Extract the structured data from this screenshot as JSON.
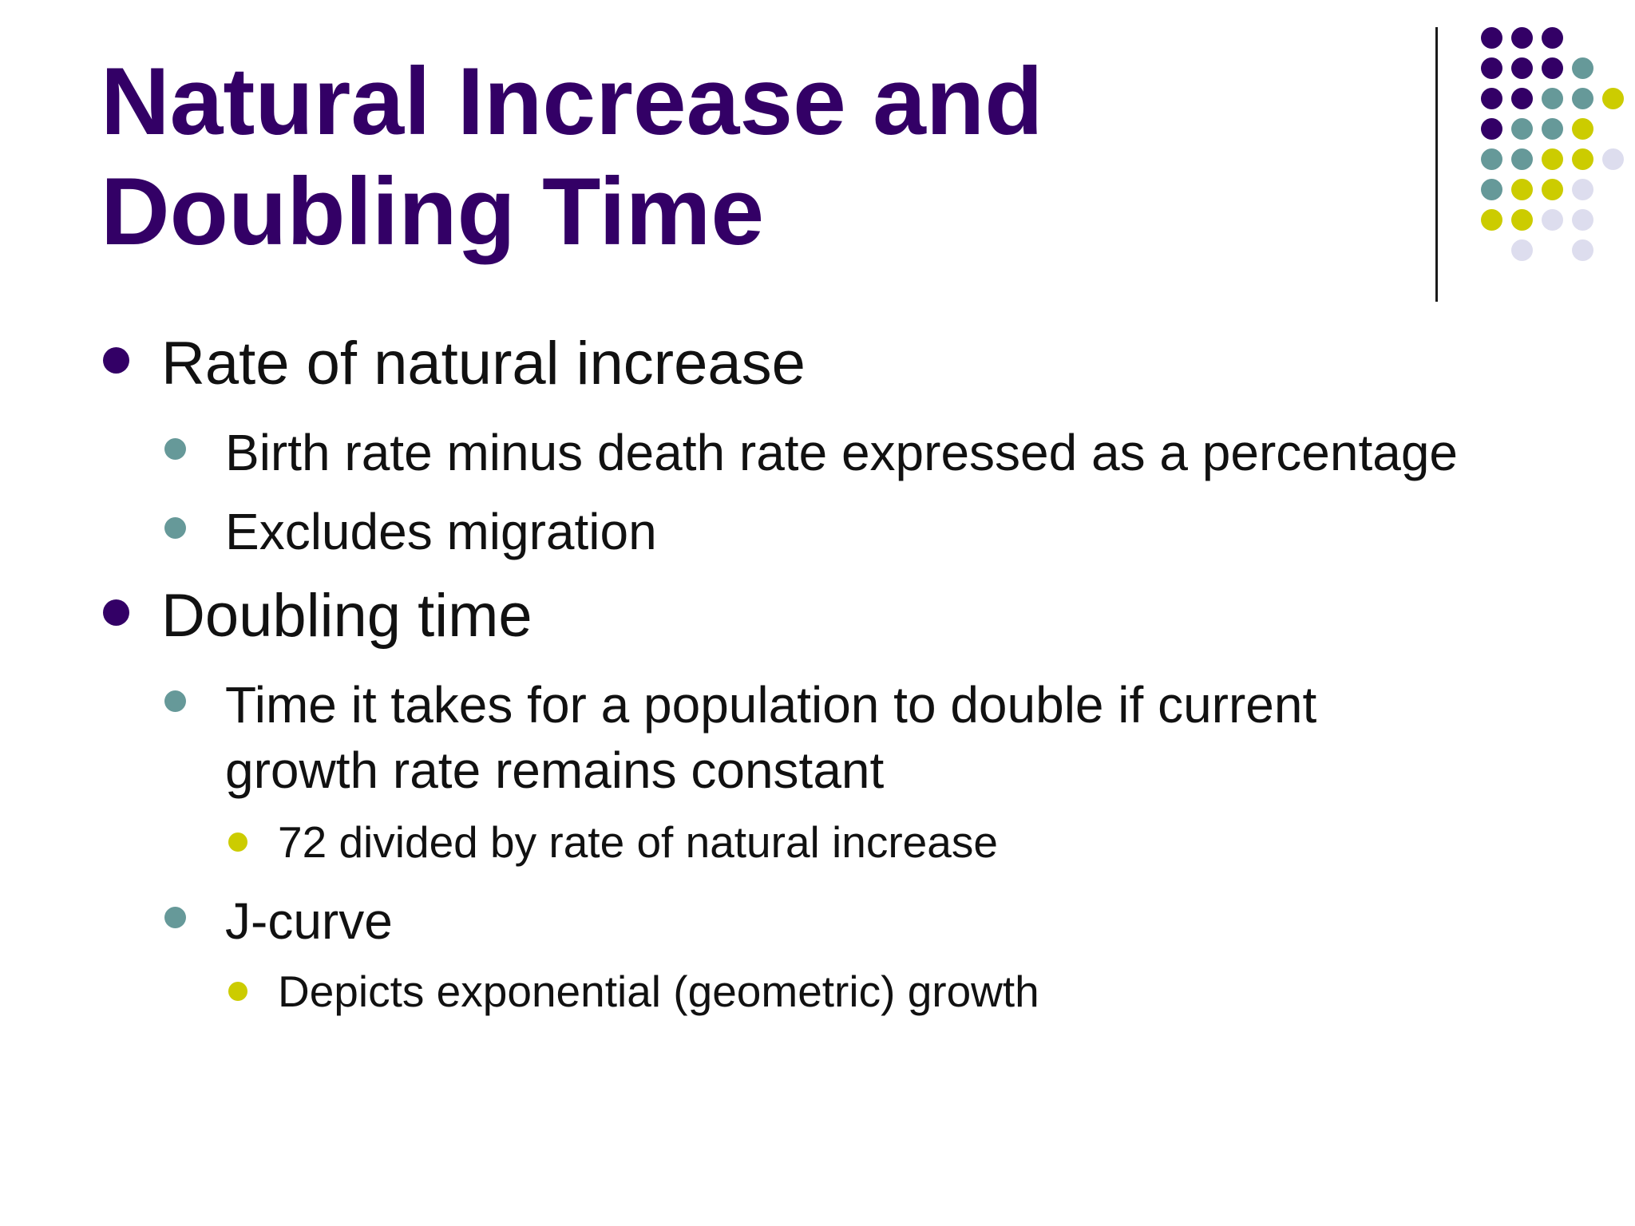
{
  "slide": {
    "title": "Natural Increase and Doubling Time",
    "bullets": [
      {
        "text": "Rate of natural increase",
        "children": [
          {
            "text": "Birth rate minus death rate expressed as a percentage"
          },
          {
            "text": "Excludes migration"
          }
        ]
      },
      {
        "text": "Doubling time",
        "children": [
          {
            "text": "Time it takes for a population to double if current growth rate remains constant",
            "children": [
              {
                "text": "72 divided by rate of natural increase"
              }
            ]
          },
          {
            "text": "J-curve",
            "children": [
              {
                "text": "Depicts exponential (geometric) growth"
              }
            ]
          }
        ]
      }
    ]
  },
  "theme": {
    "title_color": "#330066",
    "bullet_level1_color": "#330066",
    "bullet_level2_color": "#669999",
    "bullet_level3_color": "#CCCC00",
    "dot_colors": [
      "#330066",
      "#669999",
      "#CCCC00",
      "#DDDDEE"
    ]
  }
}
